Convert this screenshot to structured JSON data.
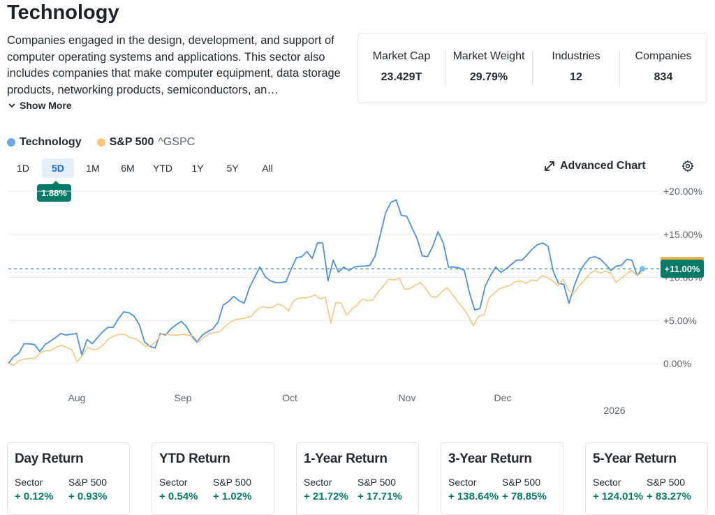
{
  "header": {
    "title": "Technology",
    "description": "Companies engaged in the design, development, and support of computer operating systems and applications. This sector also includes companies that make computer equipment, data storage products, networking products, semiconductors, an…",
    "show_more": "Show More"
  },
  "stats": [
    {
      "label": "Market Cap",
      "value": "23.429T"
    },
    {
      "label": "Market Weight",
      "value": "29.79%"
    },
    {
      "label": "Industries",
      "value": "12"
    },
    {
      "label": "Companies",
      "value": "834"
    }
  ],
  "legend": {
    "sector_name": "Technology",
    "benchmark_name": "S&P 500",
    "benchmark_symbol": "^GSPC"
  },
  "ranges": [
    "1D",
    "5D",
    "1M",
    "6M",
    "YTD",
    "1Y",
    "5Y",
    "All"
  ],
  "active_range": "5D",
  "range_badge": "1.88%",
  "toolbar": {
    "advanced_chart": "Advanced Chart"
  },
  "colors": {
    "sector": "#4a8fe7",
    "benchmark": "#f7c77c",
    "positive": "#037b66",
    "active_range": "#0f69ff"
  },
  "chart_data": {
    "type": "line",
    "x_ticks": [
      "Aug",
      "Sep",
      "Oct",
      "Nov",
      "Dec",
      "2026"
    ],
    "y_ticks": [
      "+20.00%",
      "+15.00%",
      "+10.00%",
      "+5.00%",
      "0.00%"
    ],
    "ylim": [
      -2,
      21
    ],
    "current_value_label": "+11.00%",
    "reference_line": 11.0,
    "series": [
      {
        "name": "Technology",
        "values": [
          0.0,
          0.8,
          1.2,
          2.3,
          2.3,
          2.2,
          1.4,
          2.2,
          2.6,
          3.0,
          3.5,
          3.3,
          3.4,
          3.5,
          1.0,
          2.8,
          2.3,
          3.0,
          3.7,
          4.2,
          4.2,
          5.2,
          6.0,
          5.9,
          5.5,
          4.5,
          2.5,
          2.0,
          1.8,
          3.5,
          3.3,
          4.0,
          4.5,
          4.9,
          4.3,
          3.2,
          2.5,
          3.3,
          3.7,
          4.0,
          4.8,
          6.8,
          7.2,
          7.8,
          7.3,
          7.0,
          8.8,
          10.0,
          11.2,
          10.1,
          9.6,
          9.4,
          9.4,
          9.5,
          11.0,
          12.3,
          12.4,
          13.0,
          12.2,
          14.0,
          14.0,
          9.6,
          12.0,
          10.6,
          11.2,
          10.8,
          11.2,
          11.3,
          11.3,
          11.4,
          12.5,
          15.0,
          17.5,
          18.7,
          19.0,
          17.2,
          17.1,
          15.8,
          14.5,
          12.5,
          12.4,
          13.6,
          15.3,
          14.0,
          11.2,
          11.2,
          11.1,
          10.8,
          8.2,
          6.2,
          6.4,
          9.0,
          10.2,
          11.2,
          10.6,
          11.0,
          11.5,
          12.0,
          12.0,
          12.6,
          13.3,
          13.8,
          14.0,
          13.6,
          10.7,
          9.3,
          9.2,
          7.0,
          9.0,
          10.6,
          11.6,
          12.3,
          12.4,
          12.1,
          11.5,
          10.8,
          11.3,
          11.4,
          12.1,
          12.0,
          10.2,
          11.0
        ]
      },
      {
        "name": "S&P 500",
        "values": [
          0.0,
          -0.2,
          0.3,
          0.5,
          0.6,
          0.6,
          1.2,
          1.5,
          1.5,
          1.9,
          2.1,
          1.9,
          1.6,
          0.2,
          0.9,
          1.9,
          1.6,
          1.7,
          2.2,
          2.9,
          3.2,
          3.4,
          3.4,
          3.0,
          2.9,
          2.5,
          2.0,
          2.1,
          2.6,
          3.5,
          3.4,
          3.3,
          3.3,
          3.4,
          3.3,
          3.2,
          2.5,
          3.0,
          3.5,
          3.6,
          3.7,
          4.3,
          4.8,
          5.1,
          5.2,
          5.3,
          5.5,
          6.2,
          6.6,
          6.5,
          6.5,
          6.9,
          6.7,
          6.1,
          7.3,
          7.6,
          7.6,
          7.7,
          8.0,
          7.5,
          7.7,
          4.7,
          7.1,
          7.0,
          5.6,
          6.3,
          6.8,
          7.5,
          7.3,
          7.4,
          8.3,
          9.0,
          9.8,
          9.7,
          9.9,
          8.6,
          8.7,
          9.1,
          9.4,
          8.7,
          7.8,
          7.7,
          8.3,
          8.8,
          8.1,
          7.2,
          6.5,
          5.6,
          4.4,
          5.5,
          5.6,
          7.6,
          8.2,
          8.7,
          8.9,
          9.1,
          9.5,
          9.6,
          9.3,
          9.7,
          9.6,
          10.2,
          10.0,
          9.6,
          9.0,
          9.8,
          8.5,
          8.1,
          9.0,
          9.6,
          10.4,
          10.8,
          10.5,
          10.7,
          10.5,
          9.4,
          9.9,
          10.4,
          10.8,
          10.2,
          10.6
        ]
      }
    ]
  },
  "returns": [
    {
      "title": "Day Return",
      "sector_label": "Sector",
      "bench_label": "S&P 500",
      "sector": "+ 0.12%",
      "bench": "+ 0.93%"
    },
    {
      "title": "YTD Return",
      "sector_label": "Sector",
      "bench_label": "S&P 500",
      "sector": "+ 0.54%",
      "bench": "+ 1.02%"
    },
    {
      "title": "1-Year Return",
      "sector_label": "Sector",
      "bench_label": "S&P 500",
      "sector": "+ 21.72%",
      "bench": "+ 17.71%"
    },
    {
      "title": "3-Year Return",
      "sector_label": "Sector",
      "bench_label": "S&P 500",
      "sector": "+ 138.64%",
      "bench": "+ 78.85%"
    },
    {
      "title": "5-Year Return",
      "sector_label": "Sector",
      "bench_label": "S&P 500",
      "sector": "+ 124.01%",
      "bench": "+ 83.27%"
    }
  ]
}
